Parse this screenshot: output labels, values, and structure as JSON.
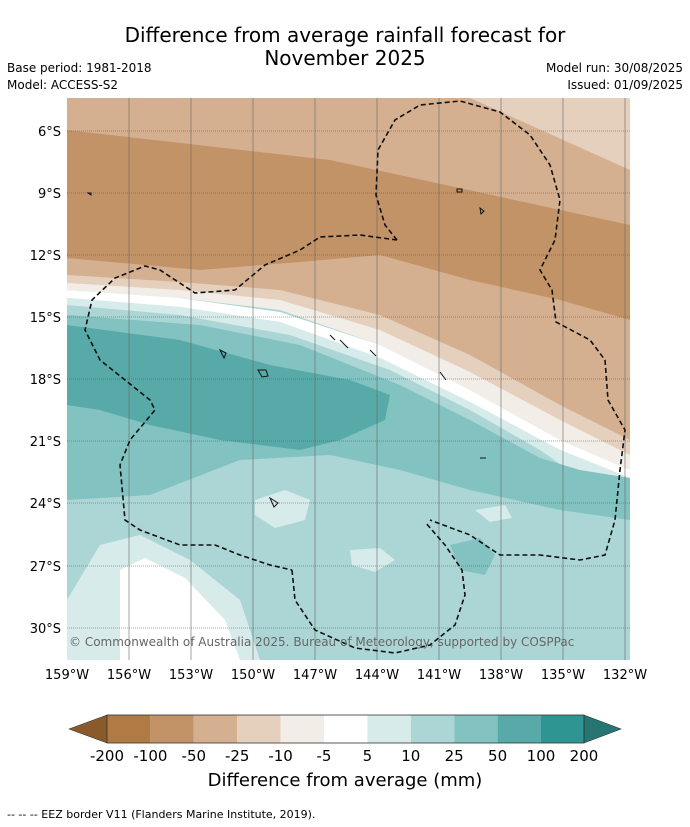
{
  "title_line1": "Difference from average rainfall forecast for",
  "title_line2": "November 2025",
  "base_period": "Base period: 1981-2018",
  "model": "Model: ACCESS-S2",
  "model_run": "Model run: 30/08/2025",
  "issued": "Issued: 01/09/2025",
  "copyright": "© Commonwealth of Australia 2025. Bureau of Meteorology, supported by COSPPac",
  "lat_labels": [
    "6°S",
    "9°S",
    "12°S",
    "15°S",
    "18°S",
    "21°S",
    "24°S",
    "27°S",
    "30°S"
  ],
  "lon_labels": [
    "159°W",
    "156°W",
    "153°W",
    "150°W",
    "147°W",
    "144°W",
    "141°W",
    "138°W",
    "135°W",
    "132°W"
  ],
  "colorbar": {
    "ticks": [
      "-200",
      "-100",
      "-50",
      "-25",
      "-10",
      "-5",
      "5",
      "10",
      "25",
      "50",
      "100",
      "200"
    ],
    "colors": [
      "#8a5a2b",
      "#b07a45",
      "#c39368",
      "#d4b090",
      "#e5d0bd",
      "#f2ede6",
      "#ffffff",
      "#d7ecea",
      "#acd6d5",
      "#82c3c1",
      "#58aaa8",
      "#2f9593",
      "#267573"
    ],
    "label": "Difference from average (mm)"
  },
  "footnote": "--  --  -- EEZ border V11 (Flanders Marine Institute, 2019)."
}
